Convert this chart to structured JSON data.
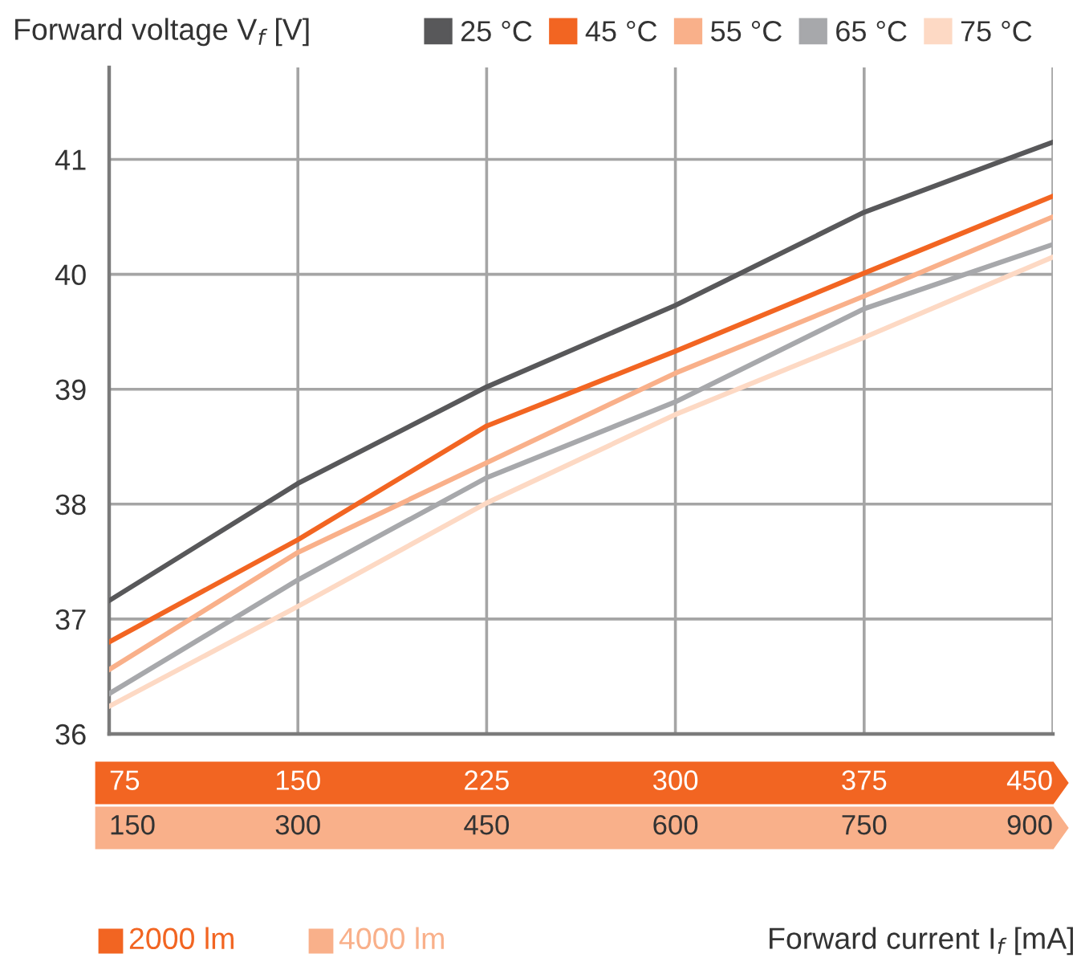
{
  "chart_data": {
    "type": "line",
    "ylabel": "Forward voltage V$_{f}$ [V]",
    "xlabel": "Forward current I$_{f}$ [mA]",
    "x": [
      75,
      150,
      225,
      300,
      375,
      450
    ],
    "xlim": [
      75,
      450
    ],
    "xticks": [
      75,
      150,
      225,
      300,
      375,
      450
    ],
    "x2lim": [
      150,
      900
    ],
    "x2ticks": [
      150,
      300,
      450,
      600,
      750,
      900
    ],
    "ylim": [
      36,
      41.8
    ],
    "yticks": [
      36,
      37,
      38,
      39,
      40,
      41
    ],
    "grid": true,
    "legend": "top right",
    "marker": "none",
    "line_style": "solid",
    "annotations": [
      "2000 lm",
      "4000 lm"
    ],
    "series": [
      {
        "name": "25 °C",
        "color": "#58585a",
        "values": [
          37.16,
          38.18,
          39.02,
          39.73,
          40.54,
          41.15
        ]
      },
      {
        "name": "45 °C",
        "color": "#f26522",
        "values": [
          36.8,
          37.69,
          38.68,
          39.33,
          40.01,
          40.68
        ]
      },
      {
        "name": "55 °C",
        "color": "#f9b08a",
        "values": [
          36.56,
          37.58,
          38.36,
          39.14,
          39.81,
          40.5
        ]
      },
      {
        "name": "65 °C",
        "color": "#a7a8ab",
        "values": [
          36.35,
          37.34,
          38.23,
          38.89,
          39.7,
          40.26
        ]
      },
      {
        "name": "75 °C",
        "color": "#fdd9c4",
        "values": [
          36.24,
          37.11,
          38.01,
          38.78,
          39.45,
          40.15
        ]
      }
    ]
  }
}
